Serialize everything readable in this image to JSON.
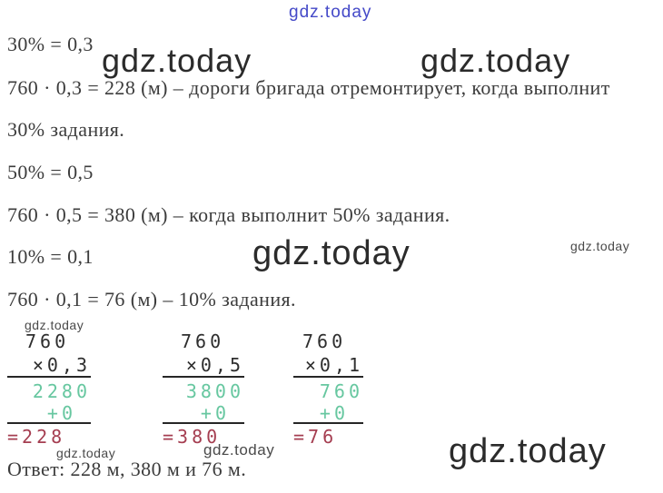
{
  "page": {
    "background": "#ffffff"
  },
  "colors": {
    "body_text": "#3c3c3c",
    "column_text": "#2e2e2e",
    "partial_green": "#67c7a0",
    "result_red": "#a53e51",
    "watermark_dark": "#2b2b2b",
    "watermark_gray": "#4a4a4a",
    "watermark_blue": "#4449c8"
  },
  "watermarks": {
    "top_blue": "gdz.today",
    "upper_left": "gdz.today",
    "upper_right": "gdz.today",
    "center": "gdz.today",
    "mid_right_small": "gdz.today",
    "above_columns": "gdz.today",
    "bottom_small_1": "gdz.today",
    "bottom_small_2": "gdz.today",
    "bottom_right": "gdz.today"
  },
  "solution": {
    "lines": [
      "30% = 0,3",
      "760 · 0,3 = 228 (м) – дороги бригада отремонтирует, когда выполнит",
      "30% задания.",
      "50% = 0,5",
      "760 · 0,5 = 380 (м) – когда выполнит 50% задания.",
      "10% = 0,1",
      "760 · 0,1 = 76 (м) – 10% задания."
    ],
    "answer": "Ответ: 228 м, 380 м и 76 м."
  },
  "columns": [
    {
      "multiplicand": "760",
      "multiplier": "×0,3",
      "partial": "2280",
      "carry": "+0",
      "result": "=228"
    },
    {
      "multiplicand": "760",
      "multiplier": "×0,5",
      "partial": "3800",
      "carry": "+0",
      "result": "=380"
    },
    {
      "multiplicand": "760",
      "multiplier": "×0,1",
      "partial": "760",
      "carry": "+0",
      "result": "=76"
    }
  ]
}
